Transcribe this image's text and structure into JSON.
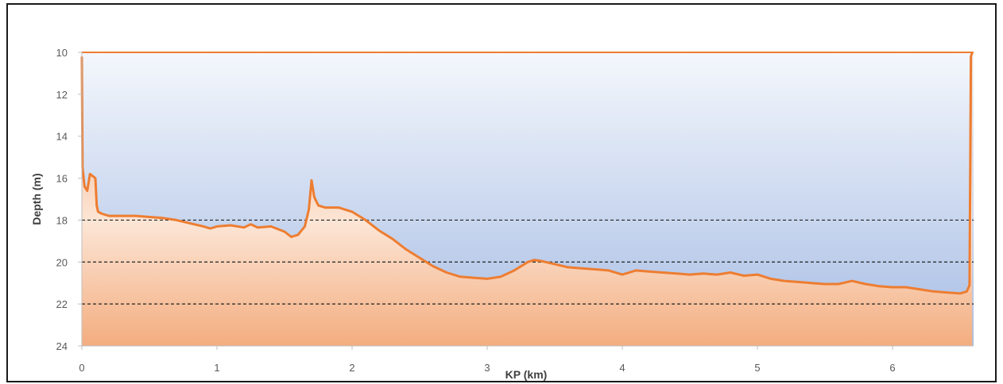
{
  "chart_data": {
    "type": "area",
    "title": "",
    "xlabel": "KP (km)",
    "ylabel": "Depth (m)",
    "xlim": [
      0,
      6.6
    ],
    "ylim": [
      10,
      24
    ],
    "y_inverted": true,
    "x_ticks": [
      "0",
      "1",
      "2",
      "3",
      "4",
      "5",
      "6"
    ],
    "y_ticks": [
      "10",
      "12",
      "14",
      "16",
      "18",
      "20",
      "22",
      "24"
    ],
    "reference_lines": [
      18,
      20,
      22
    ],
    "grid": false,
    "legend": "none",
    "colors": {
      "line": "#ED7D31",
      "water_top": "#F4F7FC",
      "water_bottom": "#A7BDE4",
      "seabed_top": "#F2A878",
      "seabed_mid": "#FCE5D5",
      "seabed_bottom": "#F3AD7F",
      "reference_line": "#222222",
      "axis": "#BFBFBF"
    },
    "series": [
      {
        "x": [
          0,
          0.005,
          0.01,
          0.02,
          0.04,
          0.06,
          0.08,
          0.1,
          0.11,
          0.12,
          0.15,
          0.2,
          0.3,
          0.4,
          0.5,
          0.6,
          0.7,
          0.8,
          0.9,
          0.95,
          1.0,
          1.1,
          1.2,
          1.25,
          1.3,
          1.4,
          1.5,
          1.55,
          1.6,
          1.65,
          1.68,
          1.7,
          1.72,
          1.75,
          1.8,
          1.9,
          2.0,
          2.1,
          2.2,
          2.3,
          2.4,
          2.5,
          2.6,
          2.7,
          2.8,
          2.9,
          3.0,
          3.1,
          3.2,
          3.3,
          3.35,
          3.4,
          3.5,
          3.6,
          3.7,
          3.8,
          3.9,
          4.0,
          4.1,
          4.2,
          4.3,
          4.4,
          4.5,
          4.6,
          4.7,
          4.8,
          4.9,
          5.0,
          5.1,
          5.2,
          5.3,
          5.4,
          5.5,
          5.6,
          5.7,
          5.8,
          5.9,
          6.0,
          6.1,
          6.2,
          6.3,
          6.4,
          6.5,
          6.55,
          6.57,
          6.58,
          6.59
        ],
        "y": [
          10.2,
          15.5,
          15.8,
          16.4,
          16.6,
          15.8,
          15.9,
          16.0,
          17.3,
          17.6,
          17.7,
          17.8,
          17.8,
          17.8,
          17.85,
          17.9,
          18.0,
          18.15,
          18.3,
          18.4,
          18.3,
          18.25,
          18.35,
          18.2,
          18.35,
          18.3,
          18.55,
          18.8,
          18.7,
          18.3,
          17.5,
          16.1,
          16.9,
          17.3,
          17.4,
          17.4,
          17.6,
          18.0,
          18.5,
          18.9,
          19.4,
          19.8,
          20.2,
          20.5,
          20.7,
          20.75,
          20.8,
          20.7,
          20.4,
          20.0,
          19.9,
          19.95,
          20.1,
          20.25,
          20.3,
          20.35,
          20.4,
          20.6,
          20.4,
          20.45,
          20.5,
          20.55,
          20.6,
          20.55,
          20.6,
          20.5,
          20.65,
          20.6,
          20.8,
          20.9,
          20.95,
          21.0,
          21.05,
          21.05,
          20.9,
          21.05,
          21.15,
          21.2,
          21.2,
          21.3,
          21.4,
          21.45,
          21.5,
          21.4,
          21.1,
          10.2,
          10.0
        ]
      }
    ]
  }
}
